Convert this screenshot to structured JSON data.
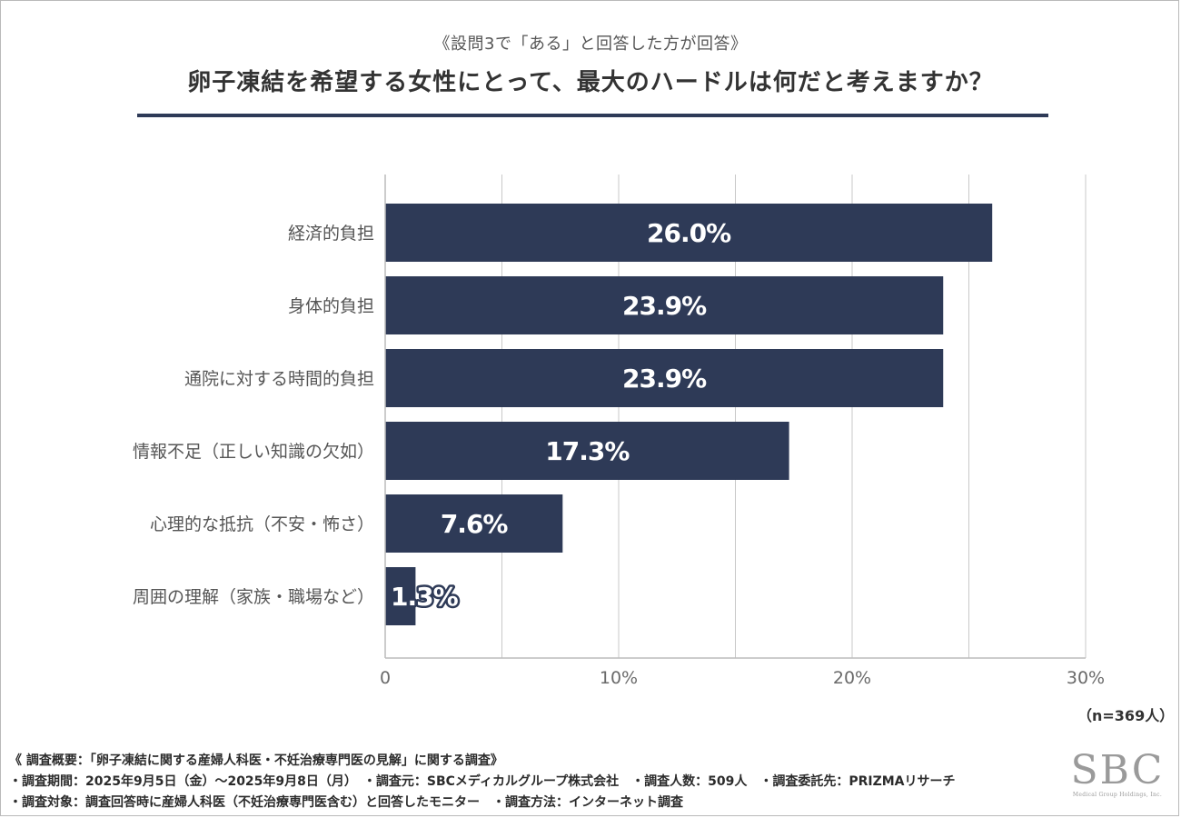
{
  "header": {
    "subtitle": "《設問3で「ある」と回答した方が回答》",
    "title": "卵子凍結を希望する女性にとって、最大のハードルは何だと考えますか？"
  },
  "chart_data": {
    "type": "bar",
    "orientation": "horizontal",
    "categories": [
      "経済的負担",
      "身体的負担",
      "通院に対する時間的負担",
      "情報不足（正しい知識の欠如）",
      "心理的な抵抗（不安・怖さ）",
      "周囲の理解（家族・職場など）"
    ],
    "values": [
      26.0,
      23.9,
      23.9,
      17.3,
      7.6,
      1.3
    ],
    "value_labels": [
      "26.0%",
      "23.9%",
      "23.9%",
      "17.3%",
      "7.6%",
      "1.3%"
    ],
    "xlim": [
      0,
      30
    ],
    "x_ticks": [
      0,
      10,
      20,
      30
    ],
    "x_tick_labels": [
      "0",
      "10%",
      "20%",
      "30%"
    ],
    "gridlines": [
      5,
      10,
      15,
      20,
      25,
      30
    ],
    "bar_color": "#2e3a57",
    "sample_size": "（n=369人）"
  },
  "footer": {
    "notes": [
      "《 調査概要：「卵子凍結に関する産婦人科医・不妊治療専門医の見解」に関する調査》",
      "・調査期間：2025年9月5日（金）〜2025年9月8日（月）　・調査元：SBCメディカルグループ株式会社　・調査人数：509人　・調査委託先：PRIZMAリサーチ",
      "・調査対象：調査回答時に産婦人科医（不妊治療専門医含む）と回答したモニター　・調査方法：インターネット調査"
    ],
    "logo": {
      "text": "SBC",
      "sub": "Medical Group Holdings, Inc."
    }
  }
}
